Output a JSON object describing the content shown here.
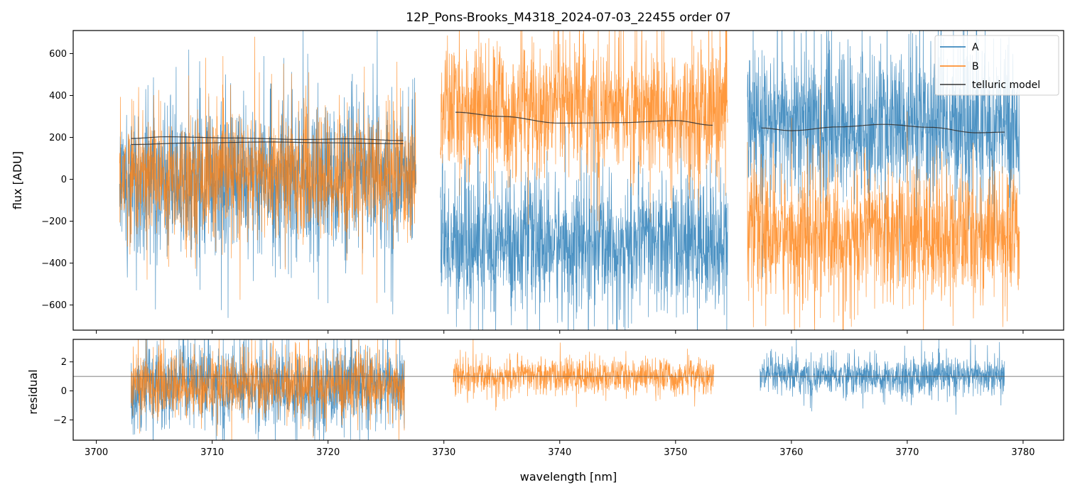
{
  "chart_data": [
    {
      "id": "top",
      "type": "line",
      "title": "12P_Pons-Brooks_M4318_2024-07-03_22455  order 07",
      "xlabel": "",
      "ylabel": "flux [ADU]",
      "xlim": [
        3698,
        3783.5
      ],
      "ylim": [
        -720,
        710
      ],
      "xticks": [
        3700,
        3710,
        3720,
        3730,
        3740,
        3750,
        3760,
        3770,
        3780
      ],
      "yticks": [
        -600,
        -400,
        -200,
        0,
        200,
        400,
        600
      ],
      "ytick_labels": [
        "−600",
        "−400",
        "−200",
        "0",
        "200",
        "400",
        "600"
      ],
      "legend": {
        "location": "top-right",
        "entries": [
          {
            "label": "A",
            "color": "#1f77b4"
          },
          {
            "label": "B",
            "color": "#ff7f0e"
          },
          {
            "label": "telluric model",
            "color": "#333333"
          }
        ]
      },
      "noise_segments": [
        {
          "series": "A",
          "x": [
            3702.0,
            3727.6
          ],
          "center": 0,
          "spread": 320,
          "color": "#1f77b4"
        },
        {
          "series": "B",
          "x": [
            3702.0,
            3727.6
          ],
          "center": 20,
          "spread": 270,
          "color": "#ff7f0e"
        },
        {
          "series": "A",
          "x": [
            3729.7,
            3754.5
          ],
          "center": -310,
          "spread": 280,
          "color": "#1f77b4"
        },
        {
          "series": "B",
          "x": [
            3729.7,
            3754.5
          ],
          "center": 330,
          "spread": 290,
          "color": "#ff7f0e"
        },
        {
          "series": "A",
          "x": [
            3756.2,
            3779.7
          ],
          "center": 260,
          "spread": 330,
          "color": "#1f77b4"
        },
        {
          "series": "B",
          "x": [
            3756.2,
            3779.7
          ],
          "center": -270,
          "spread": 280,
          "color": "#ff7f0e"
        }
      ],
      "telluric_model": [
        {
          "x": [
            3703.0,
            3706.0,
            3712.0,
            3718.0,
            3722.0,
            3726.5
          ],
          "y": [
            195,
            203,
            197,
            190,
            193,
            185
          ]
        },
        {
          "x": [
            3703.0,
            3708.0,
            3715.0,
            3720.0,
            3726.5
          ],
          "y": [
            166,
            173,
            178,
            174,
            170
          ]
        },
        {
          "x": [
            3731.0,
            3735.0,
            3740.0,
            3745.0,
            3750.0,
            3753.2
          ],
          "y": [
            320,
            300,
            268,
            270,
            280,
            258
          ]
        },
        {
          "x": [
            3757.4,
            3760.0,
            3764.0,
            3768.0,
            3772.0,
            3776.0,
            3778.4
          ],
          "y": [
            245,
            232,
            250,
            262,
            248,
            222,
            225
          ]
        }
      ]
    },
    {
      "id": "bottom",
      "type": "line",
      "title": "",
      "xlabel": "wavelength [nm]",
      "ylabel": "residual",
      "xlim": [
        3698,
        3783.5
      ],
      "ylim": [
        -3.4,
        3.55
      ],
      "xticks": [
        3700,
        3710,
        3720,
        3730,
        3740,
        3750,
        3760,
        3770,
        3780
      ],
      "yticks": [
        -2,
        0,
        2
      ],
      "ytick_labels": [
        "−2",
        "0",
        "2"
      ],
      "reference_line": 1.0,
      "noise_segments": [
        {
          "series": "A",
          "x": [
            3703.0,
            3726.6
          ],
          "center": 0.3,
          "spread": 2.6,
          "color": "#1f77b4"
        },
        {
          "series": "B",
          "x": [
            3703.0,
            3726.6
          ],
          "center": 0.4,
          "spread": 2.0,
          "color": "#ff7f0e"
        },
        {
          "series": "B",
          "x": [
            3730.8,
            3753.3
          ],
          "center": 1.0,
          "spread": 1.1,
          "color": "#ff7f0e"
        },
        {
          "series": "A",
          "x": [
            3757.3,
            3778.4
          ],
          "center": 1.0,
          "spread": 1.2,
          "color": "#1f77b4"
        }
      ]
    }
  ]
}
